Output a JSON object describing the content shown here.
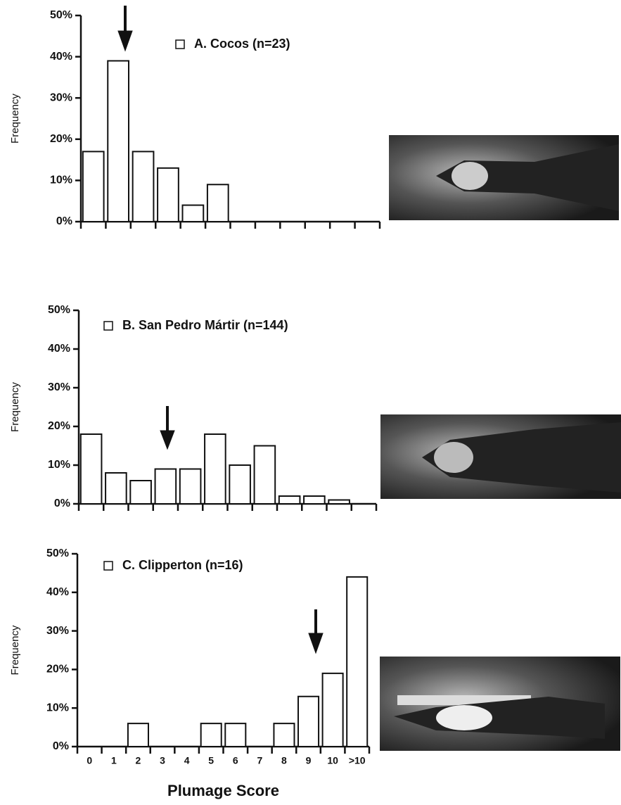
{
  "chart_data": [
    {
      "type": "bar",
      "ylabel": "Frequency",
      "categories": [
        null,
        null,
        null,
        null,
        null,
        null,
        null,
        null,
        null,
        null,
        null,
        null
      ],
      "series": [
        {
          "name": "A. Cocos (n=23)",
          "color": "#ffffff",
          "values": [
            17,
            39,
            17,
            13,
            4,
            9,
            0,
            0,
            0,
            0,
            0,
            0
          ]
        }
      ],
      "ylim": [
        0,
        50
      ],
      "yticks": [
        {
          "value": 0,
          "label": "0%"
        },
        {
          "value": 10,
          "label": "10%"
        },
        {
          "value": 20,
          "label": "20%"
        },
        {
          "value": 30,
          "label": "30%"
        },
        {
          "value": 40,
          "label": "40%"
        },
        {
          "value": 50,
          "label": "50%"
        }
      ]
    },
    {
      "type": "bar",
      "ylabel": "Frequency",
      "categories": [
        null,
        null,
        null,
        null,
        null,
        null,
        null,
        null,
        null,
        null,
        null,
        null
      ],
      "series": [
        {
          "name": "B. San Pedro Mártir (n=144)",
          "color": "#ffffff",
          "values": [
            18,
            8,
            6,
            9,
            9,
            18,
            10,
            15,
            2,
            2,
            1,
            0
          ]
        }
      ],
      "ylim": [
        0,
        50
      ],
      "yticks": [
        {
          "value": 0,
          "label": "0%"
        },
        {
          "value": 10,
          "label": "10%"
        },
        {
          "value": 20,
          "label": "20%"
        },
        {
          "value": 30,
          "label": "30%"
        },
        {
          "value": 40,
          "label": "40%"
        },
        {
          "value": 50,
          "label": "50%"
        }
      ]
    },
    {
      "type": "bar",
      "ylabel": "Frequency",
      "xlabel": "Plumage Score",
      "categories": [
        "0",
        "1",
        "2",
        "3",
        "4",
        "5",
        "6",
        "7",
        "8",
        "9",
        "10",
        ">10"
      ],
      "series": [
        {
          "name": "C. Clipperton (n=16)",
          "color": "#ffffff",
          "values": [
            0,
            0,
            6,
            0,
            0,
            6,
            6,
            0,
            6,
            13,
            19,
            44
          ]
        }
      ],
      "ylim": [
        0,
        50
      ],
      "yticks": [
        {
          "value": 0,
          "label": "0%"
        },
        {
          "value": 10,
          "label": "10%"
        },
        {
          "value": 20,
          "label": "20%"
        },
        {
          "value": 30,
          "label": "30%"
        },
        {
          "value": 40,
          "label": "40%"
        },
        {
          "value": 50,
          "label": "50%"
        }
      ]
    }
  ]
}
